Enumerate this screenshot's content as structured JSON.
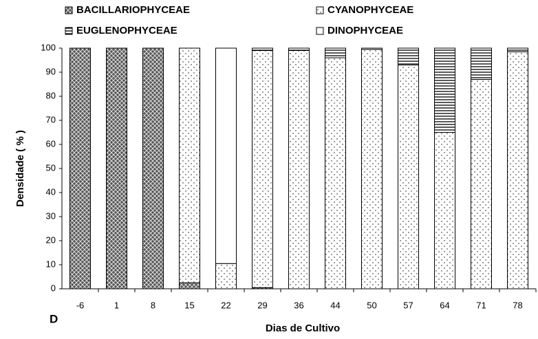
{
  "chart_data": {
    "type": "stacked_bar",
    "x_label": "Dias de Cultivo",
    "y_label": "Densidade ( % )",
    "annotation": "D",
    "categories": [
      "-6",
      "1",
      "8",
      "15",
      "22",
      "29",
      "36",
      "44",
      "50",
      "57",
      "64",
      "71",
      "78"
    ],
    "series": [
      {
        "name": "BACILLARIOPHYCEAE",
        "color": "#333333",
        "pattern": "crosshatch",
        "values": [
          100,
          100,
          100,
          2.5,
          0,
          0.5,
          0,
          0,
          0,
          0,
          0,
          0,
          0
        ]
      },
      {
        "name": "CYANOPHYCEAE",
        "color": "#555555",
        "pattern": "dots",
        "values": [
          0,
          0,
          0,
          97.5,
          10.5,
          98.5,
          99,
          96,
          99.5,
          93,
          65,
          87,
          98.5
        ]
      },
      {
        "name": "EUGLENOPHYCEAE",
        "color": "#000000",
        "pattern": "hlines",
        "values": [
          0,
          0,
          0,
          0,
          0,
          1,
          1,
          4,
          0.5,
          7,
          35,
          13,
          1.5
        ]
      },
      {
        "name": "DINOPHYCEAE",
        "color": "#ffffff",
        "pattern": "none",
        "values": [
          0,
          0,
          0,
          0,
          89.5,
          0,
          0,
          0,
          0,
          0,
          0,
          0,
          0
        ]
      }
    ],
    "ylim": [
      0,
      100
    ],
    "yticks": [
      0,
      10,
      20,
      30,
      40,
      50,
      60,
      70,
      80,
      90,
      100
    ],
    "grid": false
  }
}
